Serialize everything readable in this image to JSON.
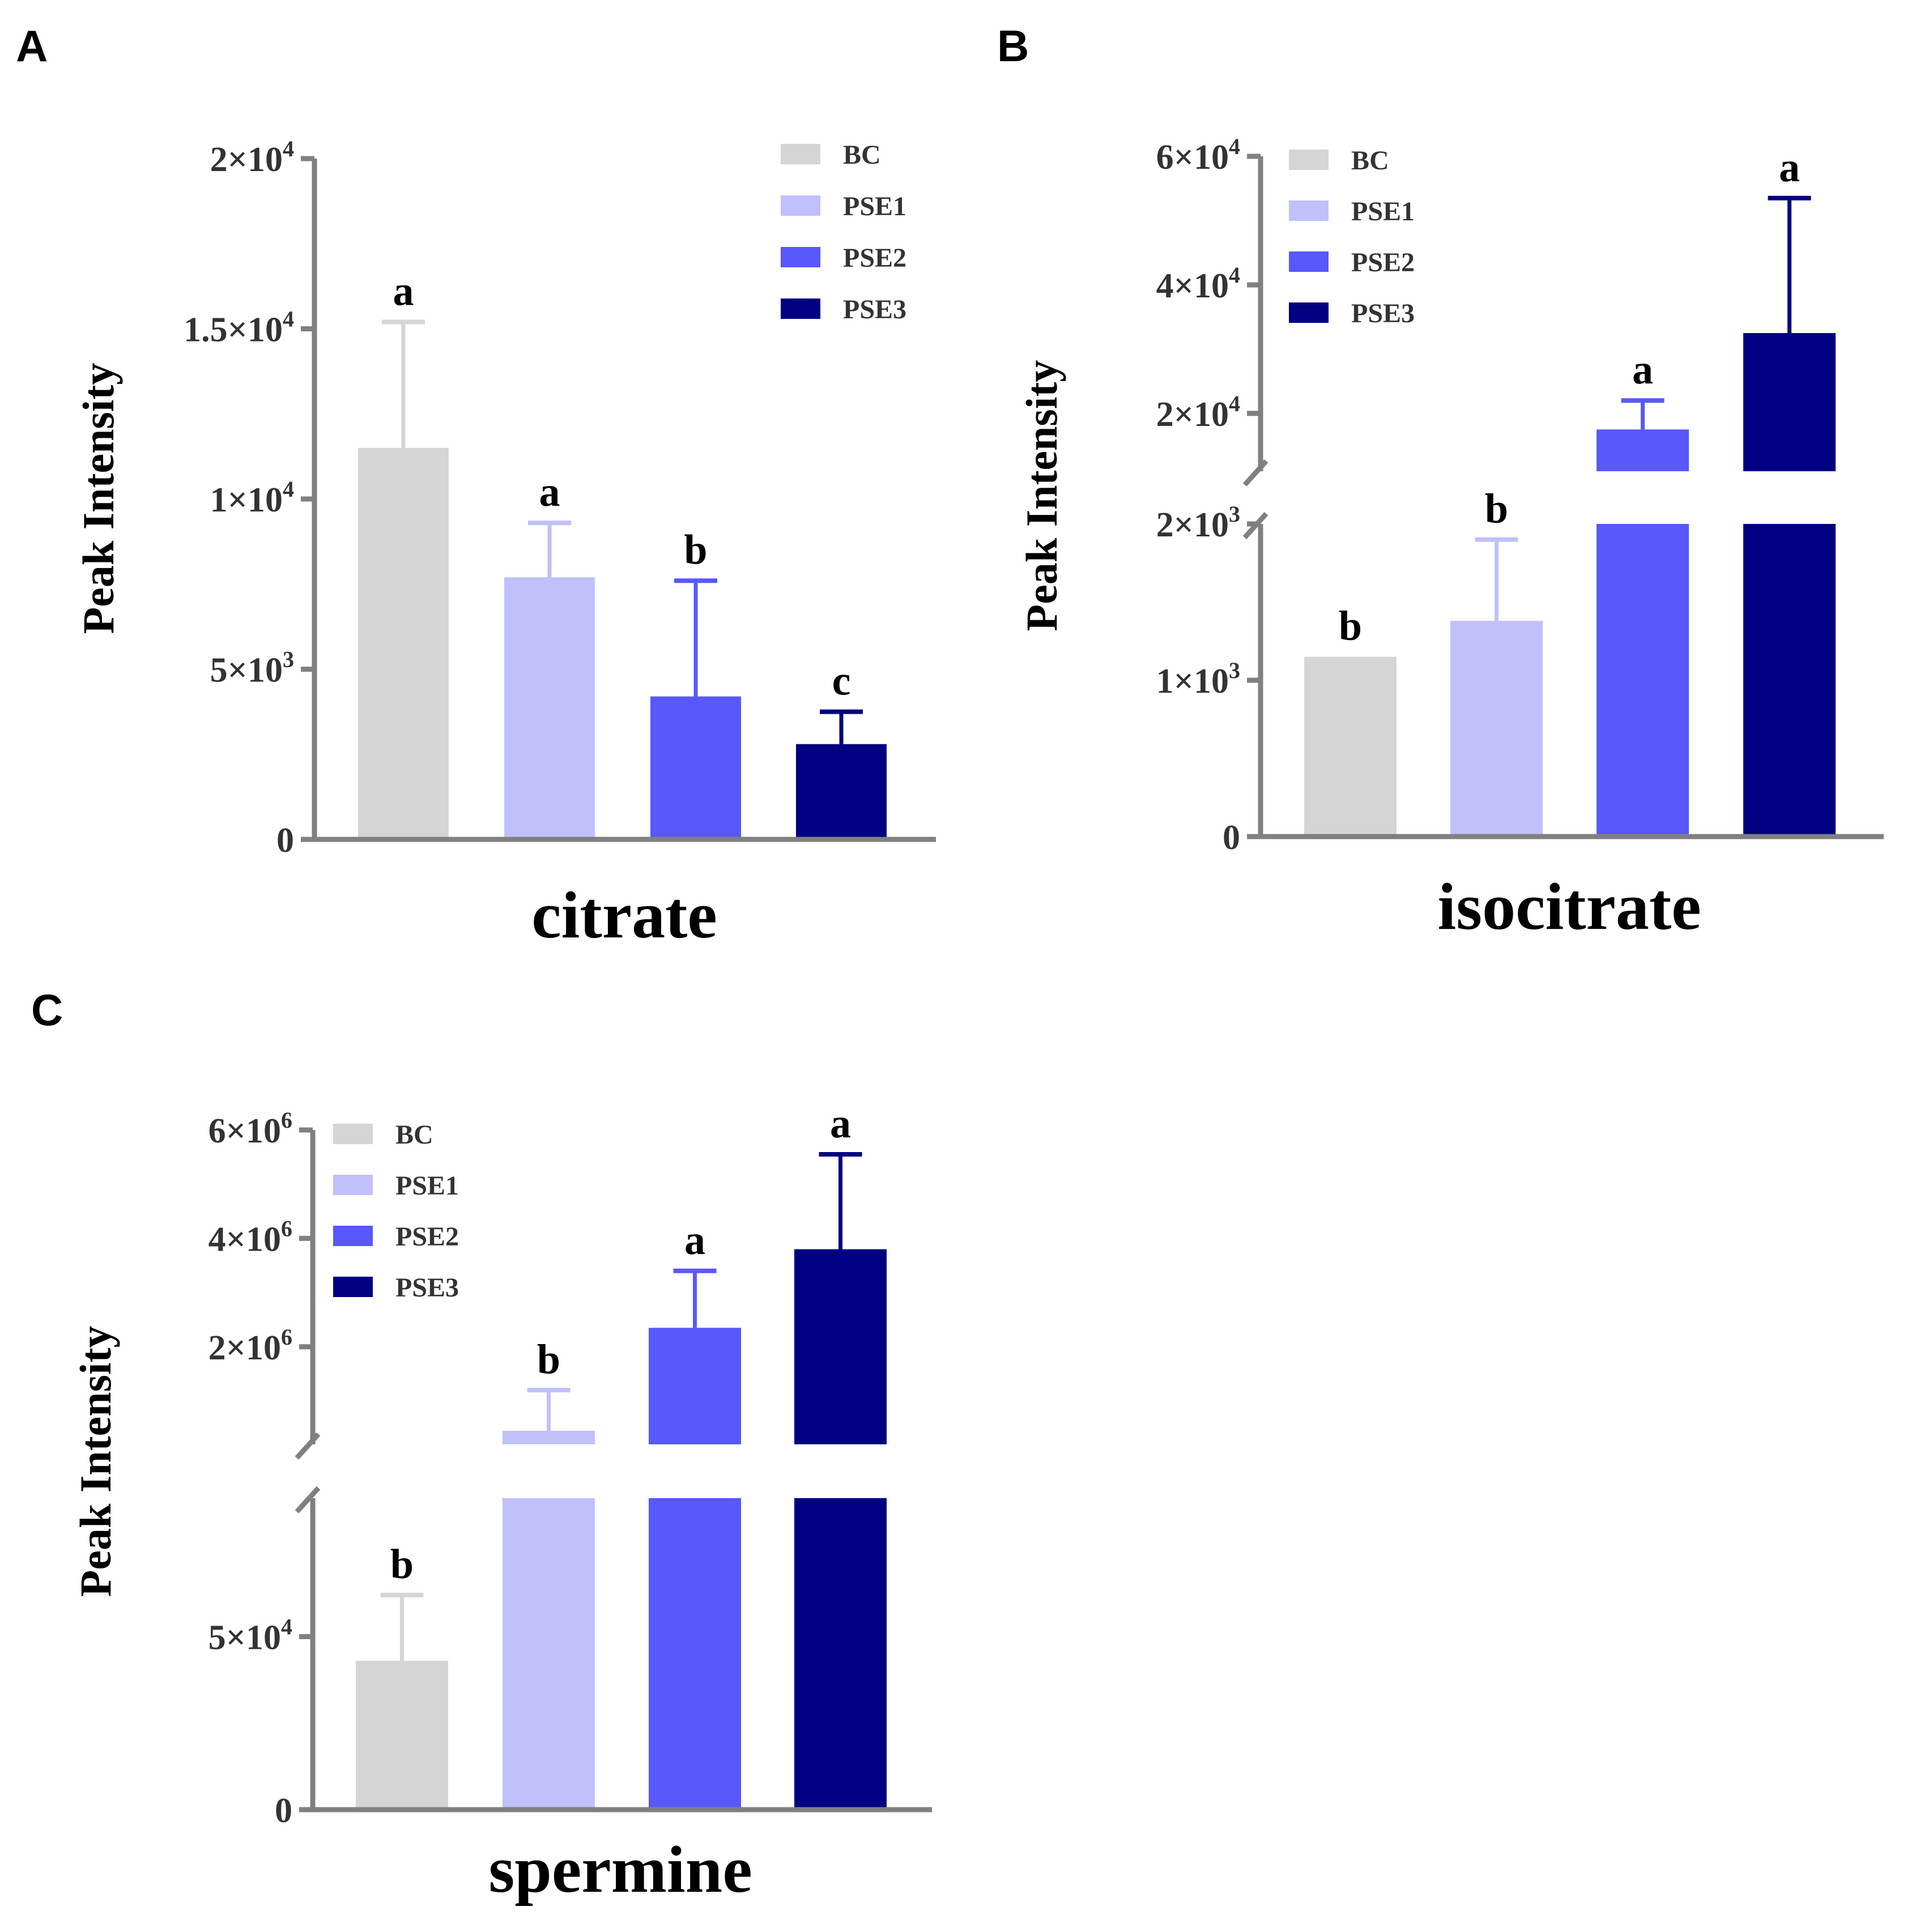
{
  "chart_data": [
    {
      "panel": "A",
      "type": "bar",
      "title": "",
      "xlabel": "citrate",
      "ylabel": "Peak Intensity",
      "ylim": [
        0,
        20000
      ],
      "yticks": [
        {
          "value": 0,
          "base": "0",
          "exp": ""
        },
        {
          "value": 5000,
          "base": "5×10",
          "exp": "3"
        },
        {
          "value": 10000,
          "base": "1×10",
          "exp": "4"
        },
        {
          "value": 15000,
          "base": "1.5×10",
          "exp": "4"
        },
        {
          "value": 20000,
          "base": "2×10",
          "exp": "4"
        }
      ],
      "categories": [
        "BC",
        "PSE1",
        "PSE2",
        "PSE3"
      ],
      "values": [
        11500,
        7700,
        4200,
        2800
      ],
      "errors": [
        3700,
        1600,
        3400,
        950
      ],
      "letters": [
        "a",
        "a",
        "b",
        "c"
      ]
    },
    {
      "panel": "B",
      "type": "bar",
      "title": "",
      "xlabel": "isocitrate",
      "ylabel": "Peak Intensity",
      "broken_axis": {
        "lower_max": 2000,
        "upper_min": 11000,
        "upper_max": 60000
      },
      "yticks": [
        {
          "value": 0,
          "base": "0",
          "exp": ""
        },
        {
          "value": 1000,
          "base": "1×10",
          "exp": "3"
        },
        {
          "value": 2000,
          "base": "2×10",
          "exp": "3"
        },
        {
          "value": 20000,
          "base": "2×10",
          "exp": "4"
        },
        {
          "value": 40000,
          "base": "4×10",
          "exp": "4"
        },
        {
          "value": 60000,
          "base": "6×10",
          "exp": "4"
        }
      ],
      "categories": [
        "BC",
        "PSE1",
        "PSE2",
        "PSE3"
      ],
      "values": [
        1150,
        1380,
        17500,
        32500
      ],
      "errors": [
        0,
        520,
        4500,
        21000
      ],
      "letters": [
        "b",
        "b",
        "a",
        "a"
      ]
    },
    {
      "panel": "C",
      "type": "bar",
      "title": "",
      "xlabel": "spermine",
      "ylabel": "Peak Intensity",
      "broken_axis": {
        "lower_max": 90000,
        "upper_min": 200000,
        "upper_max": 6000000
      },
      "yticks": [
        {
          "value": 0,
          "base": "0",
          "exp": ""
        },
        {
          "value": 50000,
          "base": "5×10",
          "exp": "4"
        },
        {
          "value": 2000000,
          "base": "2×10",
          "exp": "6"
        },
        {
          "value": 4000000,
          "base": "4×10",
          "exp": "6"
        },
        {
          "value": 6000000,
          "base": "6×10",
          "exp": "6"
        }
      ],
      "categories": [
        "BC",
        "PSE1",
        "PSE2",
        "PSE3"
      ],
      "values": [
        43000,
        450000,
        2350000,
        3800000
      ],
      "errors": [
        19000,
        750000,
        1050000,
        1750000
      ],
      "letters": [
        "b",
        "b",
        "a",
        "a"
      ]
    }
  ],
  "legend": {
    "labels": [
      "BC",
      "PSE1",
      "PSE2",
      "PSE3"
    ],
    "colors": [
      "#d5d5d5",
      "#c0c0fa",
      "#5858fb",
      "#000080"
    ]
  }
}
